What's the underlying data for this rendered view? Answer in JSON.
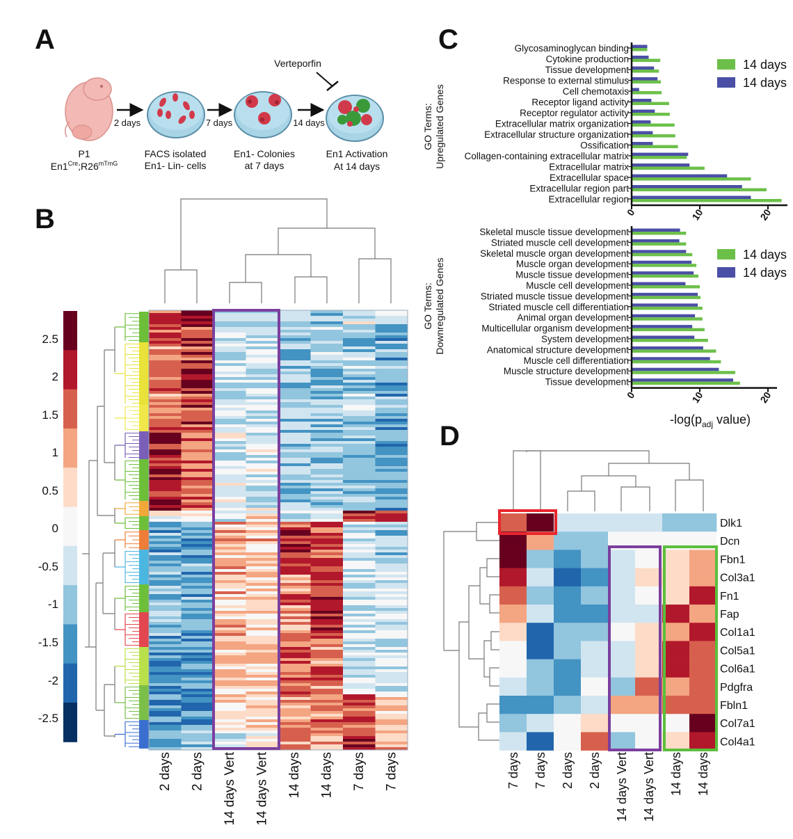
{
  "panel_labels": {
    "a": "A",
    "b": "B",
    "c": "C",
    "d": "D"
  },
  "panelA": {
    "inhibitor": "Verteporfin",
    "arrows": [
      "2 days",
      "7 days",
      "14 days"
    ],
    "stages": [
      {
        "line1": "P1",
        "line2_main": "En1",
        "line2_sup1": "Cre",
        "line2_mid": ";R26",
        "line2_sup2": "mTmG"
      },
      {
        "line1": "FACS isolated",
        "line2": "En1- Lin- cells"
      },
      {
        "line1": "En1- Colonies",
        "line2": "at 7 days"
      },
      {
        "line1": "En1 Activation",
        "line2": "At 14 days"
      }
    ]
  },
  "panelB": {
    "scale_ticks": [
      "2.5",
      "2",
      "1.5",
      "1",
      "0.5",
      "0",
      "-0.5",
      "-1",
      "-1.5",
      "-2",
      "-2.5"
    ],
    "scale_colors": [
      "#67001f",
      "#b2182b",
      "#d6604d",
      "#f4a582",
      "#fddbc7",
      "#f7f7f7",
      "#d1e5f0",
      "#92c5de",
      "#4393c3",
      "#2166ac",
      "#053061"
    ],
    "columns": [
      "2 days",
      "2 days",
      "14 days Vert",
      "14 days Vert",
      "14 days",
      "14 days",
      "7 days",
      "7 days"
    ]
  },
  "colors": {
    "vert_box": "#7b3f9e",
    "red_box": "#e8262d",
    "green_box": "#5bbf3c",
    "bar_green": "#6cc04a",
    "bar_blue": "#4b4fa6"
  },
  "chart_data": [
    {
      "type": "bar",
      "orientation": "horizontal",
      "ylabel": "GO Terms:\nUpregulated Genes",
      "xlim": [
        0,
        22
      ],
      "xticks": [
        "0",
        "10",
        "20"
      ],
      "legend": "right",
      "categories": [
        "Glycosaminoglycan binding",
        "Cytokine production",
        "Tissue development",
        "Response to external stimulus",
        "Cell chemotaxis",
        "Receptor ligand activity",
        "Receptor regulator activity",
        "Extracellular matrix organization",
        "Extracellular structure organization",
        "Ossification",
        "Collagen-containing extracellular matrix",
        "Extracellular matrix",
        "Extracellular space",
        "Extracellular region part",
        "Extracellular region"
      ],
      "series": [
        {
          "name": "14 days",
          "color": "#6cc04a",
          "values": [
            2.3,
            4.2,
            4.0,
            4.3,
            4.4,
            5.5,
            5.6,
            6.3,
            6.4,
            6.8,
            8.1,
            10.7,
            17.5,
            19.8,
            22.0
          ]
        },
        {
          "name": "14 days",
          "color": "#4b4fa6",
          "values": [
            2.3,
            2.5,
            3.3,
            3.8,
            1.1,
            2.9,
            3.4,
            2.8,
            3.1,
            3.1,
            8.3,
            8.5,
            14.0,
            16.2,
            17.5
          ]
        }
      ]
    },
    {
      "type": "bar",
      "orientation": "horizontal",
      "ylabel": "GO Terms:\nDownregulated Genes",
      "xlabel_main": "-log(p",
      "xlabel_sub": "adj",
      "xlabel_end": " value)",
      "xlim": [
        0,
        22
      ],
      "xticks": [
        "0",
        "10",
        "20"
      ],
      "legend": "right",
      "categories": [
        "Skeletal muscle tissue development",
        "Striated muscle cell development",
        "Skeletal muscle organ development",
        "Muscle organ development",
        "Muscle tissue development",
        "Muscle cell development",
        "Striated muscle tissue development",
        "Striated muscle cell differentiation",
        "Animal organ development",
        "Multicellular organism development",
        "System development",
        "Anatomical structure development",
        "Muscle cell differentiation",
        "Muscle structure development",
        "Tissue development"
      ],
      "series": [
        {
          "name": "14 days",
          "color": "#6cc04a",
          "values": [
            8.0,
            8.0,
            8.9,
            9.5,
            9.8,
            10.0,
            10.1,
            10.4,
            10.4,
            10.7,
            11.2,
            12.4,
            13.1,
            15.2,
            15.9
          ]
        },
        {
          "name": "14 days",
          "color": "#4b4fa6",
          "values": [
            7.1,
            7.0,
            8.0,
            8.8,
            9.1,
            7.9,
            9.7,
            9.7,
            9.3,
            8.9,
            9.2,
            10.5,
            11.5,
            12.8,
            14.9
          ]
        }
      ]
    },
    {
      "type": "heatmap",
      "columns": [
        "7 days",
        "7 days",
        "2 days",
        "2 days",
        "14 days Vert",
        "14 days Vert",
        "14 days",
        "14 days"
      ],
      "rows": [
        "Dlk1",
        "Dcn",
        "Fbn1",
        "Col3a1",
        "Fn1",
        "Fap",
        "Col1a1",
        "Col5a1",
        "Col6a1",
        "Pdgfra",
        "Fbln1",
        "Col7a1",
        "Col4a1"
      ],
      "values": [
        [
          1.6,
          2.6,
          -0.4,
          -0.4,
          -0.4,
          -0.4,
          -0.8,
          -0.8
        ],
        [
          2.6,
          1.0,
          -0.8,
          -0.8,
          -0.2,
          -0.2,
          -0.2,
          -0.2
        ],
        [
          2.6,
          -0.8,
          -1.6,
          -0.8,
          -0.4,
          0.0,
          0.4,
          1.0
        ],
        [
          2.1,
          -0.4,
          -2.1,
          -1.6,
          -0.4,
          0.4,
          0.4,
          1.0
        ],
        [
          1.6,
          -0.8,
          -1.6,
          -0.8,
          -0.4,
          0.0,
          0.4,
          2.1
        ],
        [
          1.0,
          -0.4,
          -1.6,
          -1.6,
          -0.4,
          -0.4,
          2.1,
          1.0
        ],
        [
          0.4,
          -2.1,
          -0.8,
          -0.8,
          0.0,
          0.4,
          1.0,
          2.1
        ],
        [
          0.0,
          -2.1,
          -0.8,
          -0.4,
          -0.4,
          0.4,
          2.1,
          1.6
        ],
        [
          0.0,
          -0.8,
          -1.6,
          -0.4,
          -0.4,
          0.4,
          2.1,
          1.6
        ],
        [
          -0.4,
          -0.8,
          -1.6,
          0.0,
          -0.8,
          1.6,
          1.0,
          1.6
        ],
        [
          -1.6,
          -1.6,
          -0.8,
          -0.4,
          1.0,
          1.0,
          1.6,
          1.6
        ],
        [
          -0.8,
          -0.4,
          0.0,
          0.4,
          0.0,
          0.0,
          0.0,
          2.6
        ],
        [
          -0.4,
          -2.1,
          0.0,
          1.6,
          -0.8,
          0.0,
          0.4,
          2.1
        ]
      ]
    }
  ]
}
